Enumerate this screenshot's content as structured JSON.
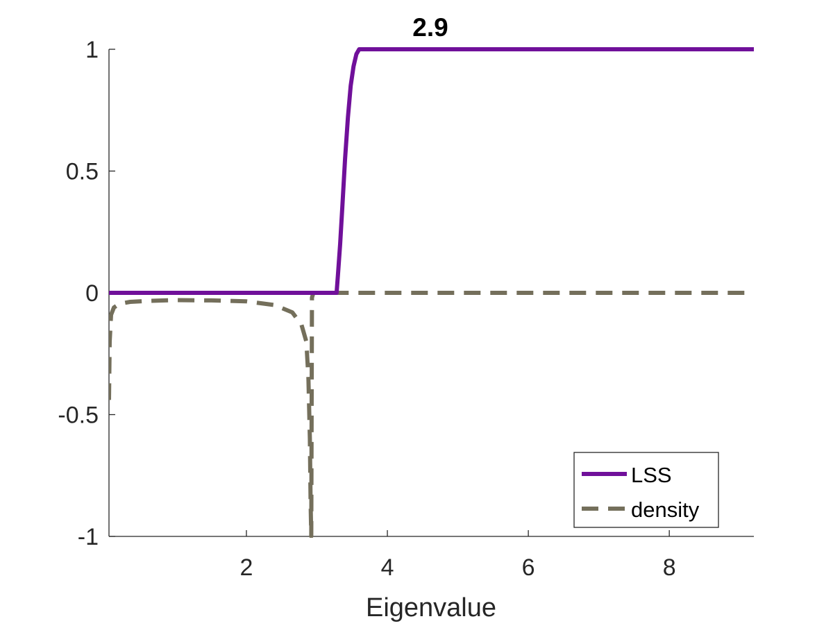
{
  "chart_data": {
    "type": "line",
    "title": "2.9",
    "xlabel": "Eigenvalue",
    "ylabel": "",
    "xlim": [
      0.05,
      9.2
    ],
    "ylim": [
      -1,
      1
    ],
    "xticks": [
      2,
      4,
      6,
      8
    ],
    "xtick_labels": [
      "2",
      "4",
      "6",
      "8"
    ],
    "yticks": [
      -1,
      -0.5,
      0,
      0.5,
      1
    ],
    "ytick_labels": [
      "-1",
      "-0.5",
      "0",
      "0.5",
      "1"
    ],
    "grid": false,
    "legend_position": "bottom-right",
    "series": [
      {
        "name": "LSS",
        "color": "#70109A",
        "style": "solid",
        "x": [
          0.05,
          3.25,
          3.28,
          3.3,
          3.33,
          3.36,
          3.4,
          3.44,
          3.48,
          3.52,
          3.56,
          3.6,
          3.64,
          9.2
        ],
        "y": [
          0,
          0,
          0,
          0.08,
          0.2,
          0.35,
          0.55,
          0.72,
          0.85,
          0.93,
          0.98,
          1,
          1,
          1
        ]
      },
      {
        "name": "density",
        "color": "#746F5B",
        "style": "dashed",
        "x": [
          0.05,
          0.06,
          0.08,
          0.12,
          0.2,
          0.35,
          0.6,
          1.0,
          1.5,
          2.0,
          2.4,
          2.65,
          2.78,
          2.85,
          2.88,
          2.9,
          2.91,
          2.92,
          2.93,
          2.95,
          3.0,
          4.0,
          6.0,
          8.0,
          9.2
        ],
        "y": [
          -0.44,
          -0.2,
          -0.09,
          -0.06,
          -0.045,
          -0.037,
          -0.033,
          -0.03,
          -0.031,
          -0.035,
          -0.05,
          -0.08,
          -0.13,
          -0.2,
          -0.35,
          -0.6,
          -0.85,
          -1.0,
          -0.02,
          0,
          0,
          0,
          0,
          0,
          0
        ]
      }
    ]
  }
}
